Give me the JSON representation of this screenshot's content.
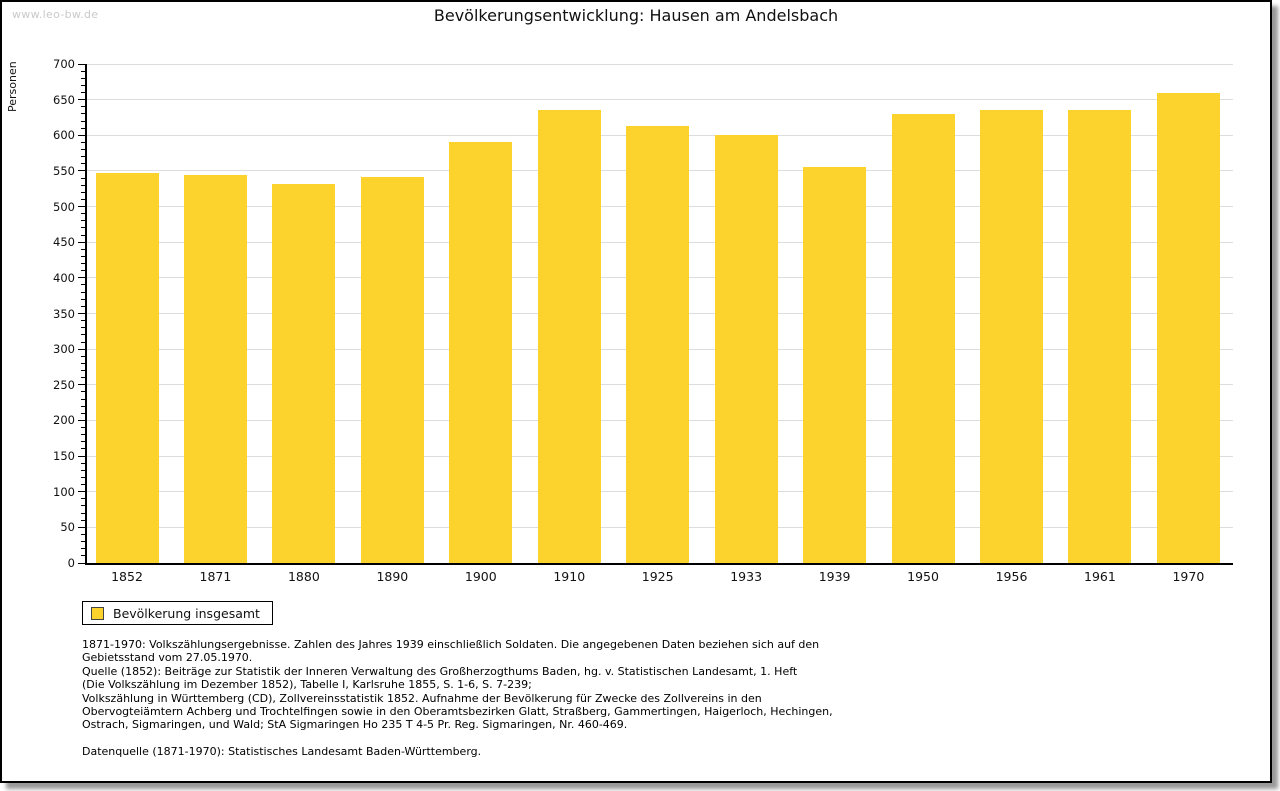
{
  "watermark": "www.leo-bw.de",
  "chart_data": {
    "type": "bar",
    "title": "Bevölkerungsentwicklung: Hausen am Andelsbach",
    "xlabel": "",
    "ylabel": "Personen",
    "categories": [
      "1852",
      "1871",
      "1880",
      "1890",
      "1900",
      "1910",
      "1925",
      "1933",
      "1939",
      "1950",
      "1956",
      "1961",
      "1970"
    ],
    "values": [
      547,
      544,
      531,
      541,
      590,
      635,
      613,
      600,
      556,
      630,
      635,
      635,
      660
    ],
    "series_name": "Bevölkerung insgesamt",
    "ylim": [
      0,
      700
    ],
    "ytick_step": 50,
    "minor_tick_step": 10,
    "grid": "horizontal",
    "legend_position": "bottom-left",
    "bar_color": "#FCD32D",
    "grid_color": "#DDDDDD",
    "axis_color": "#000000"
  },
  "legend": {
    "label": "Bevölkerung insgesamt"
  },
  "footer": {
    "lines": [
      "1871-1970: Volkszählungsergebnisse. Zahlen des Jahres 1939 einschließlich Soldaten. Die angegebenen Daten beziehen sich auf den",
      "Gebietsstand vom 27.05.1970.",
      "Quelle (1852): Beiträge zur Statistik der Inneren Verwaltung des Großherzogthums Baden, hg. v. Statistischen Landesamt, 1. Heft",
      "(Die Volkszählung im Dezember 1852), Tabelle I, Karlsruhe 1855, S. 1-6, S. 7-239;",
      "Volkszählung in Württemberg (CD), Zollvereinsstatistik 1852. Aufnahme der Bevölkerung für Zwecke des Zollvereins in den",
      "Obervogteiämtern Achberg und Trochtelfingen sowie in den Oberamtsbezirken Glatt, Straßberg, Gammertingen, Haigerloch, Hechingen,",
      "Ostrach, Sigmaringen, und Wald; StA Sigmaringen Ho 235 T 4-5 Pr. Reg. Sigmaringen, Nr. 460-469."
    ],
    "datenquelle": "Datenquelle (1871-1970): Statistisches Landesamt Baden-Württemberg."
  }
}
